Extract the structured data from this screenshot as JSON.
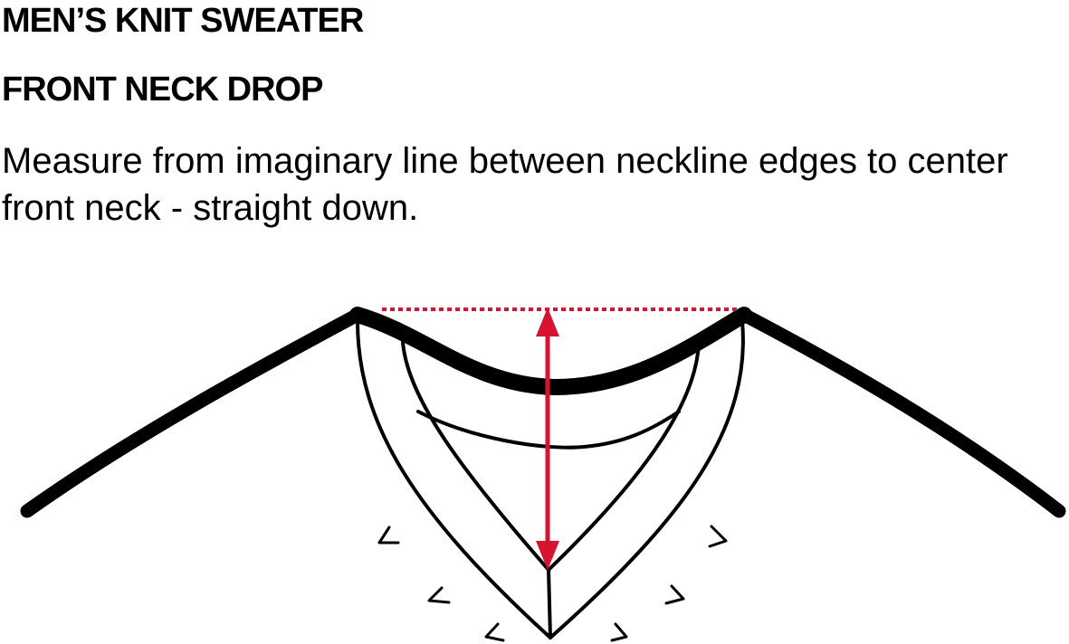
{
  "header": {
    "title": "MEN’S KNIT SWEATER",
    "subtitle": "FRONT NECK DROP"
  },
  "instructions": {
    "text": "Measure from imaginary line between neckline edges to center front neck - straight down."
  },
  "diagram": {
    "subject": "v-neck sweater front neckline",
    "measurement_color": "#d7132f",
    "outline_color": "#000000"
  }
}
